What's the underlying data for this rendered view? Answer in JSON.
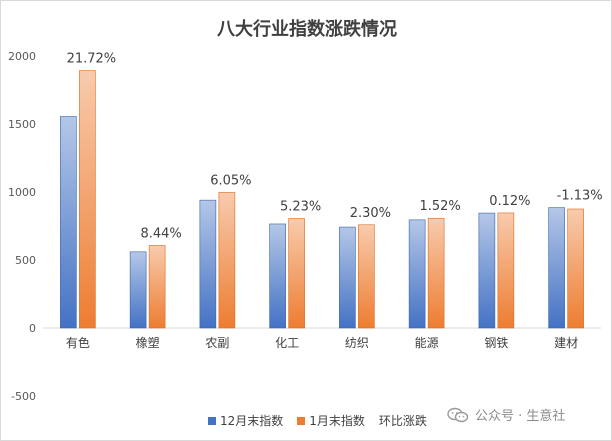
{
  "chart_data": {
    "type": "bar",
    "title": "八大行业指数涨跌情况",
    "categories": [
      "有色",
      "橡塑",
      "农副",
      "化工",
      "纺织",
      "能源",
      "钢铁",
      "建材"
    ],
    "series": [
      {
        "name": "12月末指数",
        "values": [
          1555,
          560,
          940,
          765,
          742,
          795,
          845,
          885
        ],
        "color": "#4472c4"
      },
      {
        "name": "1月末指数",
        "values": [
          1893,
          607,
          997,
          805,
          759,
          807,
          846,
          875
        ],
        "color": "#ed7d31"
      },
      {
        "name": "环比涨跌",
        "values": [
          21.72,
          8.44,
          6.05,
          5.23,
          2.3,
          1.52,
          0.12,
          -1.13
        ],
        "color": "#a5a5a5"
      }
    ],
    "data_labels": [
      "21.72%",
      "8.44%",
      "6.05%",
      "5.23%",
      "2.30%",
      "1.52%",
      "0.12%",
      "-1.13%"
    ],
    "y_ticks": [
      "2000",
      "1500",
      "1000",
      "500",
      "0",
      "-500"
    ],
    "ylim": [
      -500,
      2000
    ],
    "grid": false,
    "legend_position": "bottom"
  },
  "legend": {
    "items": [
      "12月末指数",
      "1月末指数",
      "环比涨跌"
    ]
  },
  "watermark": {
    "text": "公众号 · 生意社",
    "icon": "wechat-icon"
  }
}
